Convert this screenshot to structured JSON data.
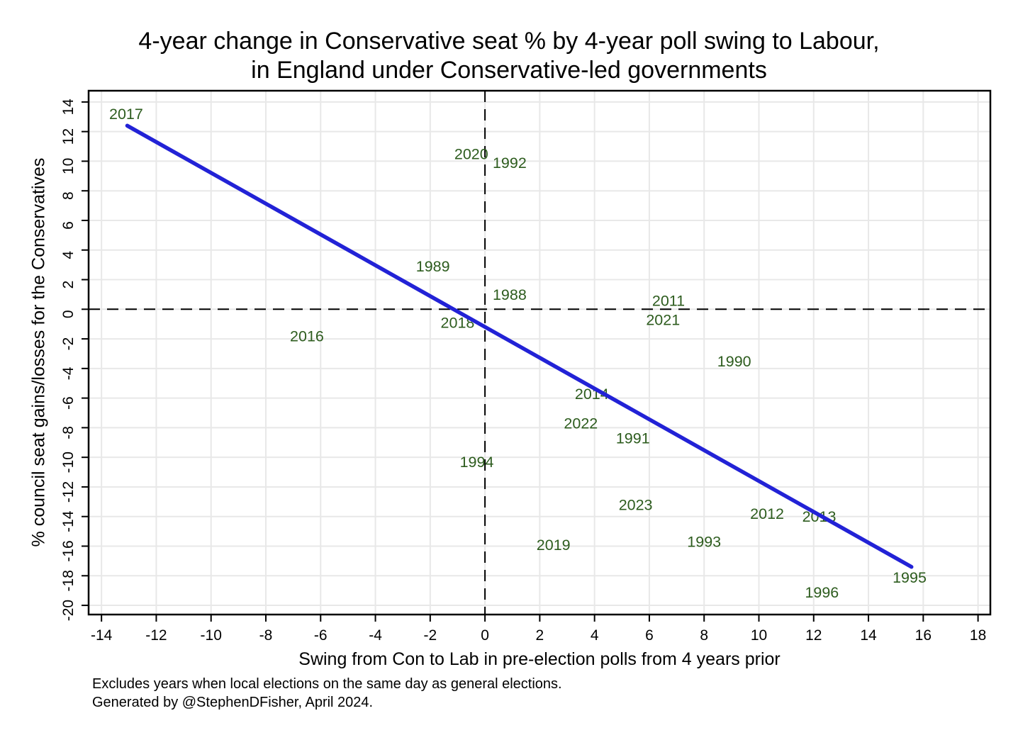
{
  "title": {
    "line1": "4-year change in Conservative seat % by 4-year poll swing to Labour,",
    "line2": "in England under Conservative-led governments"
  },
  "footnotes": {
    "line1": "Excludes years when local elections on the same day as general elections.",
    "line2": "Generated by @StephenDFisher, April 2024."
  },
  "chart_data": {
    "type": "scatter",
    "title": "4-year change in Conservative seat % by 4-year poll swing to Labour, in England under Conservative-led governments",
    "xlabel": "Swing from Con to Lab in pre-election polls from 4 years prior",
    "ylabel": "% council seat gains/losses for the Conservatives",
    "xlim": [
      -14.47,
      18.45
    ],
    "ylim": [
      -20.62,
      14.76
    ],
    "xticks": [
      -14,
      -12,
      -10,
      -8,
      -6,
      -4,
      -2,
      0,
      2,
      4,
      6,
      8,
      10,
      12,
      14,
      16,
      18
    ],
    "yticks": [
      -20,
      -18,
      -16,
      -14,
      -12,
      -10,
      -8,
      -6,
      -4,
      -2,
      0,
      2,
      4,
      6,
      8,
      10,
      12,
      14
    ],
    "grid": true,
    "legend": "none",
    "reference_lines": [
      {
        "axis": "x",
        "value": 0,
        "style": "dashed"
      },
      {
        "axis": "y",
        "value": 0,
        "style": "dashed"
      }
    ],
    "points": [
      {
        "label": "1988",
        "x": 0.9,
        "y": 1.0
      },
      {
        "label": "1989",
        "x": -1.9,
        "y": 2.9
      },
      {
        "label": "1990",
        "x": 9.1,
        "y": -3.5
      },
      {
        "label": "1991",
        "x": 5.4,
        "y": -8.7
      },
      {
        "label": "1992",
        "x": 0.9,
        "y": 9.9
      },
      {
        "label": "1993",
        "x": 8.0,
        "y": -15.7
      },
      {
        "label": "1994",
        "x": -0.3,
        "y": -10.3
      },
      {
        "label": "1995",
        "x": 15.5,
        "y": -18.1
      },
      {
        "label": "1996",
        "x": 12.3,
        "y": -19.1
      },
      {
        "label": "2011",
        "x": 6.7,
        "y": 0.6
      },
      {
        "label": "2012",
        "x": 10.3,
        "y": -13.8
      },
      {
        "label": "2013",
        "x": 12.2,
        "y": -14.0
      },
      {
        "label": "2014",
        "x": 3.9,
        "y": -5.7
      },
      {
        "label": "2016",
        "x": -6.5,
        "y": -1.8
      },
      {
        "label": "2017",
        "x": -13.1,
        "y": 13.2
      },
      {
        "label": "2018",
        "x": -1.0,
        "y": -0.9
      },
      {
        "label": "2019",
        "x": 2.5,
        "y": -15.9
      },
      {
        "label": "2020",
        "x": -0.5,
        "y": 10.5
      },
      {
        "label": "2021",
        "x": 6.5,
        "y": -0.7
      },
      {
        "label": "2022",
        "x": 3.5,
        "y": -7.7
      },
      {
        "label": "2023",
        "x": 5.5,
        "y": -13.2
      }
    ],
    "fit_line": {
      "x1": -13.06,
      "y1": 12.4,
      "x2": 15.57,
      "y2": -17.4
    },
    "colors": {
      "point_labels": "#2d5c1e",
      "fit_line": "#2222d6",
      "grid": "#e8e8e8",
      "axis": "#000000",
      "reference_line": "#000000",
      "background": "#ffffff"
    }
  }
}
